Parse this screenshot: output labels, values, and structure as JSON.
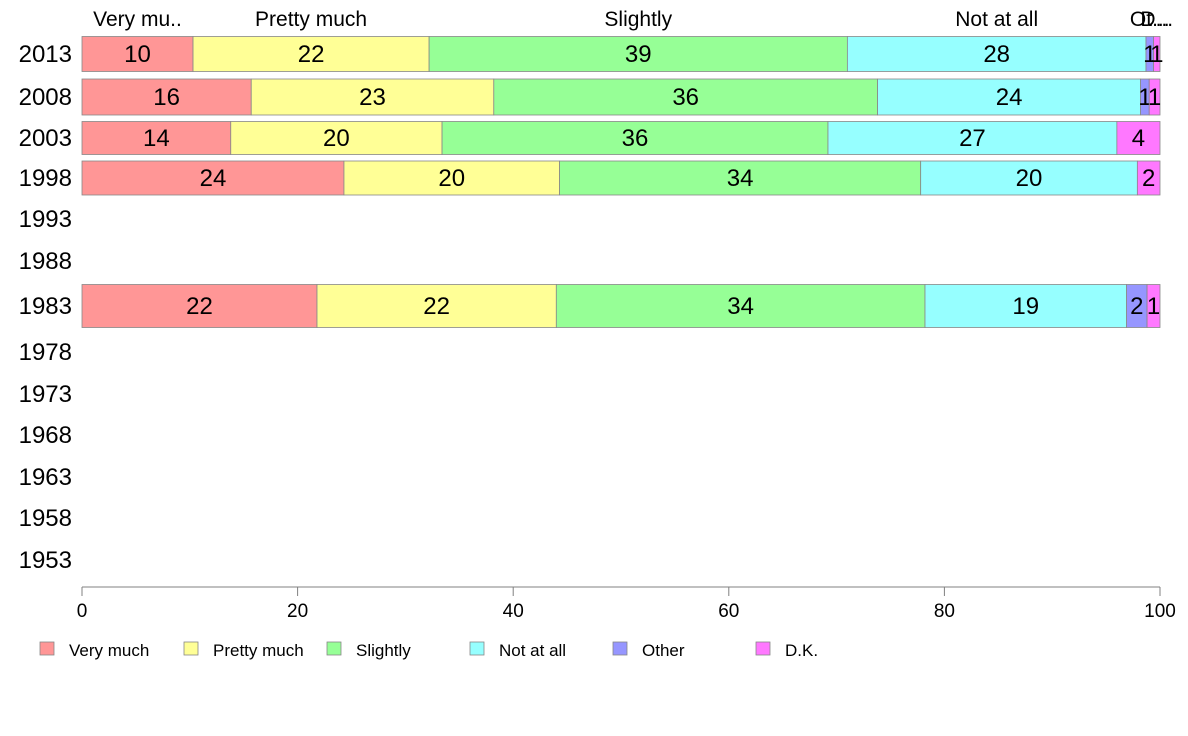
{
  "chart_data": {
    "type": "bar",
    "orientation": "horizontal",
    "stacked": true,
    "title": "",
    "xlabel": "",
    "ylabel": "",
    "xlim": [
      0,
      100
    ],
    "xticks": [
      "0",
      "20",
      "40",
      "60",
      "80",
      "100"
    ],
    "grid": false,
    "legend_position": "bottom",
    "categories": [
      "2013",
      "2008",
      "2003",
      "1998",
      "1993",
      "1988",
      "1983",
      "1978",
      "1973",
      "1968",
      "1963",
      "1958",
      "1953"
    ],
    "series": [
      {
        "name": "Very much",
        "color": "#ff9696",
        "values": [
          10.3,
          15.7,
          13.8,
          24.3,
          null,
          null,
          21.8,
          null,
          null,
          null,
          null,
          null,
          null
        ]
      },
      {
        "name": "Pretty much",
        "color": "#ffff96",
        "values": [
          21.9,
          22.5,
          19.6,
          20.0,
          null,
          null,
          22.2,
          null,
          null,
          null,
          null,
          null,
          null
        ]
      },
      {
        "name": "Slightly",
        "color": "#96ff96",
        "values": [
          38.8,
          35.6,
          35.8,
          33.5,
          null,
          null,
          34.2,
          null,
          null,
          null,
          null,
          null,
          null
        ]
      },
      {
        "name": "Not at all",
        "color": "#96ffff",
        "values": [
          27.7,
          24.4,
          26.8,
          20.1,
          null,
          null,
          18.7,
          null,
          null,
          null,
          null,
          null,
          null
        ]
      },
      {
        "name": "Other",
        "color": "#9696ff",
        "values": [
          0.7,
          0.8,
          0.0,
          0.0,
          null,
          null,
          1.9,
          null,
          null,
          null,
          null,
          null,
          null
        ]
      },
      {
        "name": "D.K.",
        "color": "#ff78ff",
        "values": [
          0.6,
          1.0,
          4.0,
          2.1,
          null,
          null,
          1.2,
          null,
          null,
          null,
          null,
          null,
          null
        ]
      }
    ],
    "data_labels": [
      [
        "10",
        "22",
        "39",
        "28",
        "1",
        "1"
      ],
      [
        "16",
        "23",
        "36",
        "24",
        "1",
        "1"
      ],
      [
        "14",
        "20",
        "36",
        "27",
        "",
        "4"
      ],
      [
        "24",
        "20",
        "34",
        "20",
        "",
        "2"
      ],
      [],
      [],
      [
        "22",
        "22",
        "34",
        "19",
        "2",
        "1"
      ],
      [],
      [],
      [],
      [],
      [],
      []
    ],
    "top_labels": [
      "Very mu..",
      "Pretty much",
      "Slightly",
      "Not at all",
      "Ot...",
      "D..."
    ]
  }
}
